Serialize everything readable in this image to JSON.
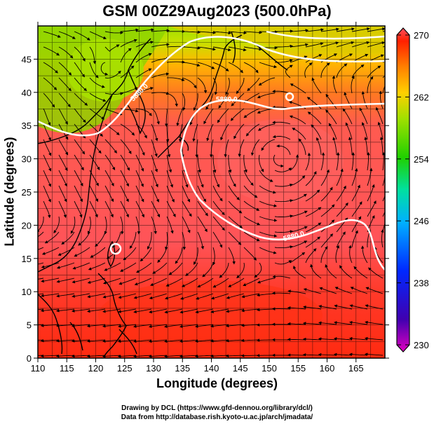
{
  "title": "GSM 00Z29Aug2023 (500.0hPa)",
  "x_axis": {
    "label": "Longitude (degrees)",
    "range": [
      110,
      170
    ],
    "ticks": [
      "110",
      "115",
      "120",
      "125",
      "130",
      "135",
      "140",
      "145",
      "150",
      "155",
      "160",
      "165"
    ]
  },
  "y_axis": {
    "label": "Latitude  (degrees)",
    "range": [
      0,
      50
    ],
    "ticks": [
      "0",
      "5",
      "10",
      "15",
      "20",
      "25",
      "30",
      "35",
      "40",
      "45"
    ]
  },
  "colorbar": {
    "range": [
      230,
      270
    ],
    "tick_labels": [
      "270",
      "262",
      "254",
      "246",
      "238",
      "230"
    ],
    "colors": [
      "#e000c0",
      "#4000b0",
      "#0028ff",
      "#00b0ff",
      "#00e0a0",
      "#20d000",
      "#a0e000",
      "#ffd000",
      "#ff8000",
      "#ff2000",
      "#ff5060"
    ]
  },
  "contours": [
    {
      "label": "5880.0"
    },
    {
      "label": "5880.0"
    },
    {
      "label": "5880.0"
    }
  ],
  "credits": [
    "Drawing by DCL (https://www.gfd-dennou.org/library/dcl/)",
    "Data from http://database.rish.kyoto-u.ac.jp/arch/jmadata/"
  ]
}
